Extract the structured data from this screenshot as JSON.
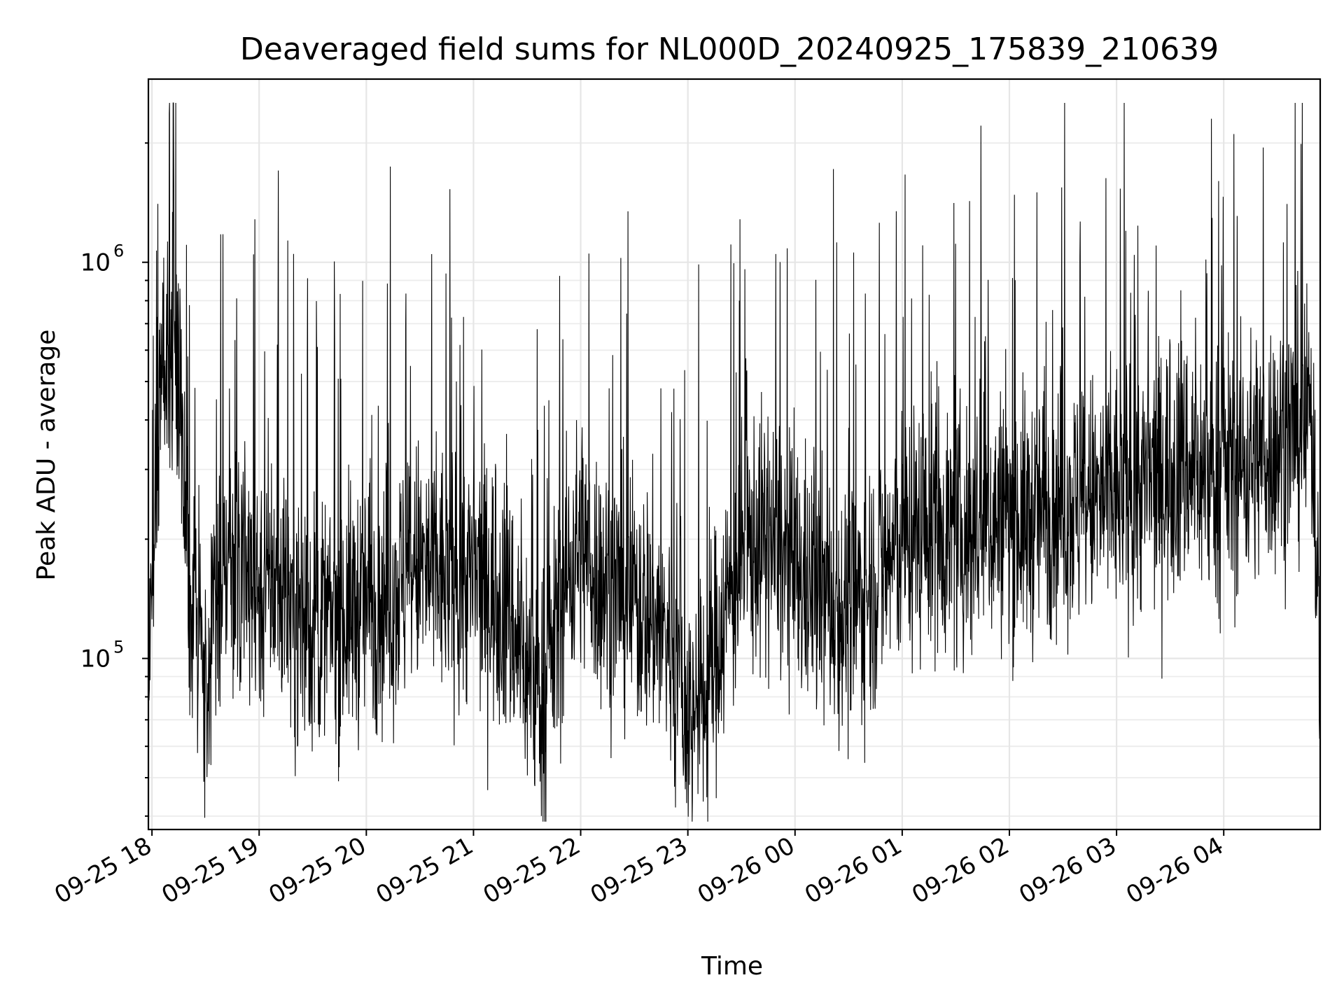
{
  "chart_data": {
    "type": "line",
    "title": "Deaveraged field sums for NL000D_20240925_175839_210639",
    "xlabel": "Time",
    "ylabel": "Peak ADU - average",
    "yscale": "log",
    "xlim": [
      "2024-09-25 17:58",
      "2024-09-26 04:54"
    ],
    "ylim": [
      37000,
      2900000
    ],
    "grid": true,
    "legend": "none",
    "x_tick_labels": [
      "09-25 18",
      "09-25 19",
      "09-25 20",
      "09-25 21",
      "09-25 22",
      "09-25 23",
      "09-26 00",
      "09-26 01",
      "09-26 02",
      "09-26 03",
      "09-26 04"
    ],
    "y_tick_labels": [
      {
        "base": "10",
        "exp": "5",
        "value": 100000
      },
      {
        "base": "10",
        "exp": "6",
        "value": 1000000
      }
    ],
    "series_color": "#000000",
    "series": [
      {
        "x": [
          "2024-09-25 17:58",
          "2024-09-25 18:05",
          "2024-09-25 18:10",
          "2024-09-25 18:15",
          "2024-09-25 18:20",
          "2024-09-25 18:30",
          "2024-09-25 18:40",
          "2024-09-25 18:50",
          "2024-09-25 19:00",
          "2024-09-25 19:10",
          "2024-09-25 19:20",
          "2024-09-25 19:30",
          "2024-09-25 19:40",
          "2024-09-25 19:50",
          "2024-09-25 20:00",
          "2024-09-25 20:10",
          "2024-09-25 20:20",
          "2024-09-25 20:30",
          "2024-09-25 20:40",
          "2024-09-25 20:50",
          "2024-09-25 21:00",
          "2024-09-25 21:10",
          "2024-09-25 21:20",
          "2024-09-25 21:30",
          "2024-09-25 21:40",
          "2024-09-25 21:50",
          "2024-09-25 22:00",
          "2024-09-25 22:10",
          "2024-09-25 22:20",
          "2024-09-25 22:30",
          "2024-09-25 22:40",
          "2024-09-25 22:50",
          "2024-09-25 23:00",
          "2024-09-25 23:10",
          "2024-09-25 23:20",
          "2024-09-25 23:30",
          "2024-09-25 23:40",
          "2024-09-25 23:50",
          "2024-09-26 00:00",
          "2024-09-26 00:10",
          "2024-09-26 00:20",
          "2024-09-26 00:30",
          "2024-09-26 00:40",
          "2024-09-26 00:50",
          "2024-09-26 01:00",
          "2024-09-26 01:10",
          "2024-09-26 01:20",
          "2024-09-26 01:30",
          "2024-09-26 01:40",
          "2024-09-26 01:50",
          "2024-09-26 02:00",
          "2024-09-26 02:10",
          "2024-09-26 02:20",
          "2024-09-26 02:30",
          "2024-09-26 02:40",
          "2024-09-26 02:50",
          "2024-09-26 03:00",
          "2024-09-26 03:10",
          "2024-09-26 03:20",
          "2024-09-26 03:30",
          "2024-09-26 03:40",
          "2024-09-26 03:50",
          "2024-09-26 04:00",
          "2024-09-26 04:10",
          "2024-09-26 04:20",
          "2024-09-26 04:30",
          "2024-09-26 04:40",
          "2024-09-26 04:50",
          "2024-09-26 04:54"
        ],
        "y": [
          90000,
          450000,
          700000,
          500000,
          150000,
          100000,
          180000,
          150000,
          150000,
          160000,
          130000,
          120000,
          125000,
          130000,
          140000,
          140000,
          155000,
          170000,
          160000,
          160000,
          160000,
          150000,
          130000,
          95000,
          80000,
          150000,
          200000,
          160000,
          150000,
          140000,
          130000,
          110000,
          70000,
          80000,
          130000,
          180000,
          200000,
          190000,
          160000,
          150000,
          140000,
          130000,
          150000,
          170000,
          200000,
          210000,
          220000,
          200000,
          210000,
          220000,
          230000,
          220000,
          240000,
          250000,
          240000,
          250000,
          260000,
          270000,
          280000,
          300000,
          310000,
          290000,
          300000,
          310000,
          330000,
          350000,
          380000,
          400000,
          90000
        ]
      }
    ]
  }
}
